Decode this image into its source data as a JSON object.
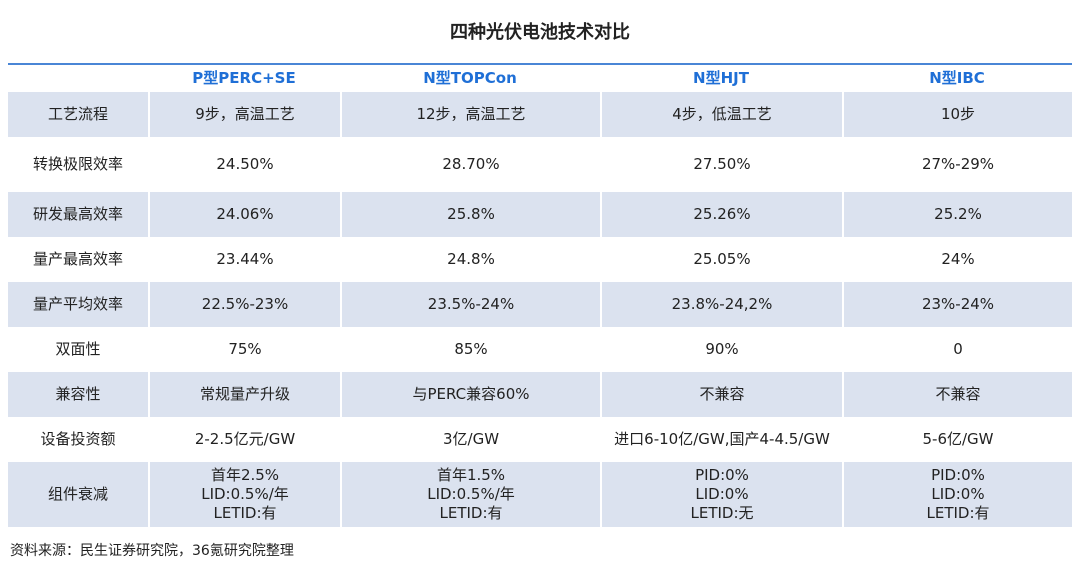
{
  "title": "四种光伏电池技术对比",
  "table": {
    "header": [
      "P型PERC+SE",
      "N型TOPCon",
      "N型HJT",
      "N型IBC"
    ],
    "rows": [
      {
        "label": "工艺流程",
        "cells": [
          [
            "9步，高温工艺"
          ],
          [
            "12步，高温工艺"
          ],
          [
            "4步，低温工艺"
          ],
          [
            "10步"
          ]
        ]
      },
      {
        "label": "转换极限效率",
        "cells": [
          [
            "24.50%"
          ],
          [
            "28.70%"
          ],
          [
            "27.50%"
          ],
          [
            "27%-29%"
          ]
        ]
      },
      {
        "label": "研发最高效率",
        "cells": [
          [
            "24.06%"
          ],
          [
            "25.8%"
          ],
          [
            "25.26%"
          ],
          [
            "25.2%"
          ]
        ]
      },
      {
        "label": "量产最高效率",
        "cells": [
          [
            "23.44%"
          ],
          [
            "24.8%"
          ],
          [
            "25.05%"
          ],
          [
            "24%"
          ]
        ]
      },
      {
        "label": "量产平均效率",
        "cells": [
          [
            "22.5%-23%"
          ],
          [
            "23.5%-24%"
          ],
          [
            "23.8%-24,2%"
          ],
          [
            "23%-24%"
          ]
        ]
      },
      {
        "label": "双面性",
        "cells": [
          [
            "75%"
          ],
          [
            "85%"
          ],
          [
            "90%"
          ],
          [
            "0"
          ]
        ]
      },
      {
        "label": "兼容性",
        "cells": [
          [
            "常规量产升级"
          ],
          [
            "与PERC兼容60%"
          ],
          [
            "不兼容"
          ],
          [
            "不兼容"
          ]
        ]
      },
      {
        "label": "设备投资额",
        "cells": [
          [
            "2-2.5亿元/GW"
          ],
          [
            "3亿/GW"
          ],
          [
            "进口6-10亿/GW,国产4-4.5/GW"
          ],
          [
            "5-6亿/GW"
          ]
        ]
      },
      {
        "label": "组件衰减",
        "cells": [
          [
            "首年2.5%",
            "LID:0.5%/年",
            "LETID:有"
          ],
          [
            "首年1.5%",
            "LID:0.5%/年",
            "LETID:有"
          ],
          [
            "PID:0%",
            "LID:0%",
            "LETID:无"
          ],
          [
            "PID:0%",
            "LID:0%",
            "LETID:有"
          ]
        ]
      }
    ]
  },
  "source": "资料来源：民生证券研究院，36氪研究院整理"
}
